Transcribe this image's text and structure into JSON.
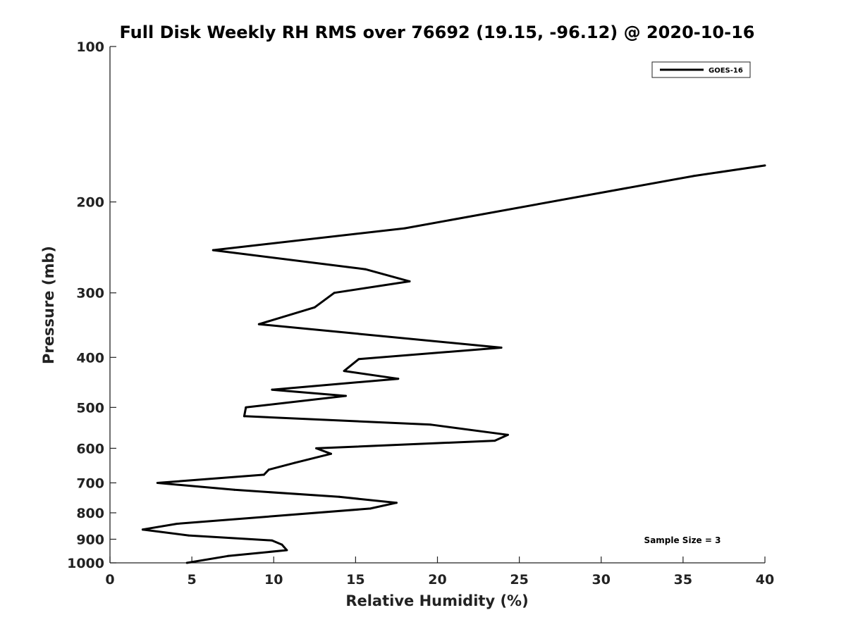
{
  "chart_data": {
    "type": "line",
    "title": "Full Disk Weekly RH RMS over 76692 (19.15, -96.12) @ 2020-10-16",
    "xlabel": "Relative Humidity (%)",
    "ylabel": "Pressure (mb)",
    "xlim": [
      0,
      40
    ],
    "ylim": [
      100,
      1000
    ],
    "y_scale": "log",
    "y_reversed": true,
    "x_ticks": [
      0,
      5,
      10,
      15,
      20,
      25,
      30,
      35,
      40
    ],
    "y_ticks": [
      100,
      200,
      300,
      400,
      500,
      600,
      700,
      800,
      900,
      1000
    ],
    "grid": false,
    "legend_position": "top-right",
    "annotation": "Sample Size = 3",
    "series": [
      {
        "name": "GOES-16",
        "color": "#000000",
        "points": [
          {
            "x": 40.0,
            "y": 170
          },
          {
            "x": 35.7,
            "y": 178
          },
          {
            "x": 18.0,
            "y": 225
          },
          {
            "x": 6.3,
            "y": 248
          },
          {
            "x": 15.6,
            "y": 270
          },
          {
            "x": 18.3,
            "y": 285
          },
          {
            "x": 13.7,
            "y": 300
          },
          {
            "x": 12.5,
            "y": 320
          },
          {
            "x": 9.1,
            "y": 345
          },
          {
            "x": 23.9,
            "y": 383
          },
          {
            "x": 15.2,
            "y": 403
          },
          {
            "x": 14.3,
            "y": 425
          },
          {
            "x": 17.6,
            "y": 440
          },
          {
            "x": 9.9,
            "y": 462
          },
          {
            "x": 14.4,
            "y": 475
          },
          {
            "x": 8.3,
            "y": 500
          },
          {
            "x": 8.2,
            "y": 520
          },
          {
            "x": 19.6,
            "y": 540
          },
          {
            "x": 24.3,
            "y": 565
          },
          {
            "x": 23.5,
            "y": 580
          },
          {
            "x": 12.6,
            "y": 600
          },
          {
            "x": 13.5,
            "y": 615
          },
          {
            "x": 11.3,
            "y": 640
          },
          {
            "x": 9.7,
            "y": 660
          },
          {
            "x": 9.4,
            "y": 675
          },
          {
            "x": 2.9,
            "y": 700
          },
          {
            "x": 7.6,
            "y": 722
          },
          {
            "x": 14.0,
            "y": 745
          },
          {
            "x": 17.5,
            "y": 765
          },
          {
            "x": 15.9,
            "y": 785
          },
          {
            "x": 4.1,
            "y": 840
          },
          {
            "x": 2.0,
            "y": 862
          },
          {
            "x": 4.8,
            "y": 885
          },
          {
            "x": 9.9,
            "y": 905
          },
          {
            "x": 10.5,
            "y": 922
          },
          {
            "x": 10.8,
            "y": 945
          },
          {
            "x": 7.2,
            "y": 970
          },
          {
            "x": 4.7,
            "y": 1000
          }
        ]
      }
    ]
  }
}
